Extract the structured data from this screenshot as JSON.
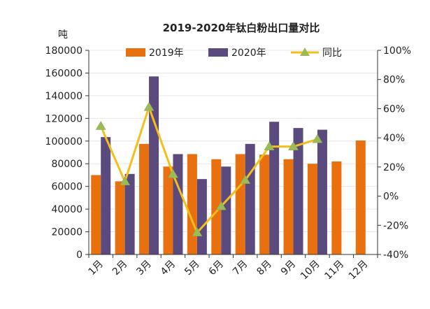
{
  "chart_data": {
    "type": "bar",
    "title": "2019-2020年钛白粉出口量对比",
    "ylabel_left": "吨",
    "categories": [
      "1月",
      "2月",
      "3月",
      "4月",
      "5月",
      "6月",
      "7月",
      "8月",
      "9月",
      "10月",
      "11月",
      "12月"
    ],
    "y_ticks_left": [
      "0",
      "20000",
      "40000",
      "60000",
      "80000",
      "100000",
      "120000",
      "140000",
      "160000",
      "180000"
    ],
    "y_ticks_right": [
      "-40%",
      "-20%",
      "0%",
      "20%",
      "40%",
      "60%",
      "80%",
      "100%"
    ],
    "ylim_left": [
      0,
      180000
    ],
    "ylim_right": [
      -40,
      100
    ],
    "series": [
      {
        "name": "2019年",
        "kind": "bar",
        "color": "#E8700E",
        "values": [
          70000,
          64500,
          97500,
          77500,
          88500,
          84000,
          88500,
          88000,
          84000,
          80000,
          82000,
          100500
        ]
      },
      {
        "name": "2020年",
        "kind": "bar",
        "color": "#5B4A7D",
        "values": [
          103500,
          71000,
          157000,
          88500,
          66500,
          77500,
          97500,
          117000,
          111500,
          110000,
          null,
          null
        ]
      },
      {
        "name": "同比",
        "kind": "line",
        "axis": "right",
        "color": "#F5BE1A",
        "marker_color": "#9BBB59",
        "values": [
          48,
          10,
          61,
          15,
          -25,
          -7,
          11,
          34,
          34,
          39,
          null,
          null
        ]
      }
    ],
    "legend_position": "top"
  }
}
